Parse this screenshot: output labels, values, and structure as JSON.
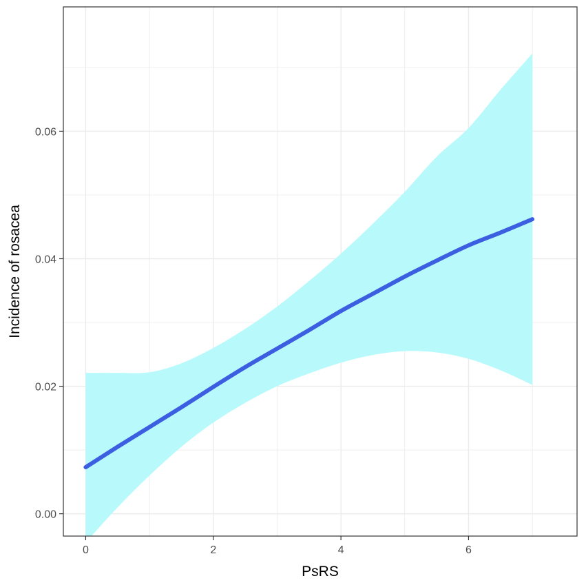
{
  "chart_data": {
    "type": "line",
    "title": "",
    "xlabel": "PsRS",
    "ylabel": "Incidence of rosacea",
    "xlim": [
      -0.35,
      7.7
    ],
    "ylim": [
      -0.0035,
      0.0795
    ],
    "x_ticks": [
      0,
      2,
      4,
      6
    ],
    "x_tick_labels": [
      "0",
      "2",
      "4",
      "6"
    ],
    "y_ticks": [
      0.0,
      0.02,
      0.04,
      0.06
    ],
    "y_tick_labels": [
      "0.00",
      "0.02",
      "0.04",
      "0.06"
    ],
    "grid": true,
    "legend": "none",
    "series": [
      {
        "x": [
          0,
          0.5,
          1,
          1.5,
          2,
          2.5,
          3,
          3.5,
          4,
          4.5,
          5,
          5.5,
          6,
          6.5,
          7
        ],
        "y": [
          0.0073,
          0.0105,
          0.0136,
          0.0167,
          0.0199,
          0.023,
          0.0259,
          0.0288,
          0.0318,
          0.0345,
          0.0372,
          0.0397,
          0.0421,
          0.0441,
          0.0462
        ],
        "lower": [
          -0.0045,
          0.001,
          0.006,
          0.0105,
          0.0143,
          0.0174,
          0.02,
          0.022,
          0.0237,
          0.0249,
          0.0255,
          0.0253,
          0.0243,
          0.0225,
          0.0202
        ],
        "upper": [
          0.0221,
          0.0221,
          0.0222,
          0.0236,
          0.026,
          0.029,
          0.0325,
          0.0365,
          0.0408,
          0.0455,
          0.0505,
          0.056,
          0.0605,
          0.0665,
          0.0722
        ]
      }
    ],
    "colors": {
      "line": "#3b5fe0",
      "ribbon": "#b8fafb",
      "grid": "#ebebeb",
      "panel_border": "#333333",
      "axis_text": "#4d4d4d"
    }
  }
}
